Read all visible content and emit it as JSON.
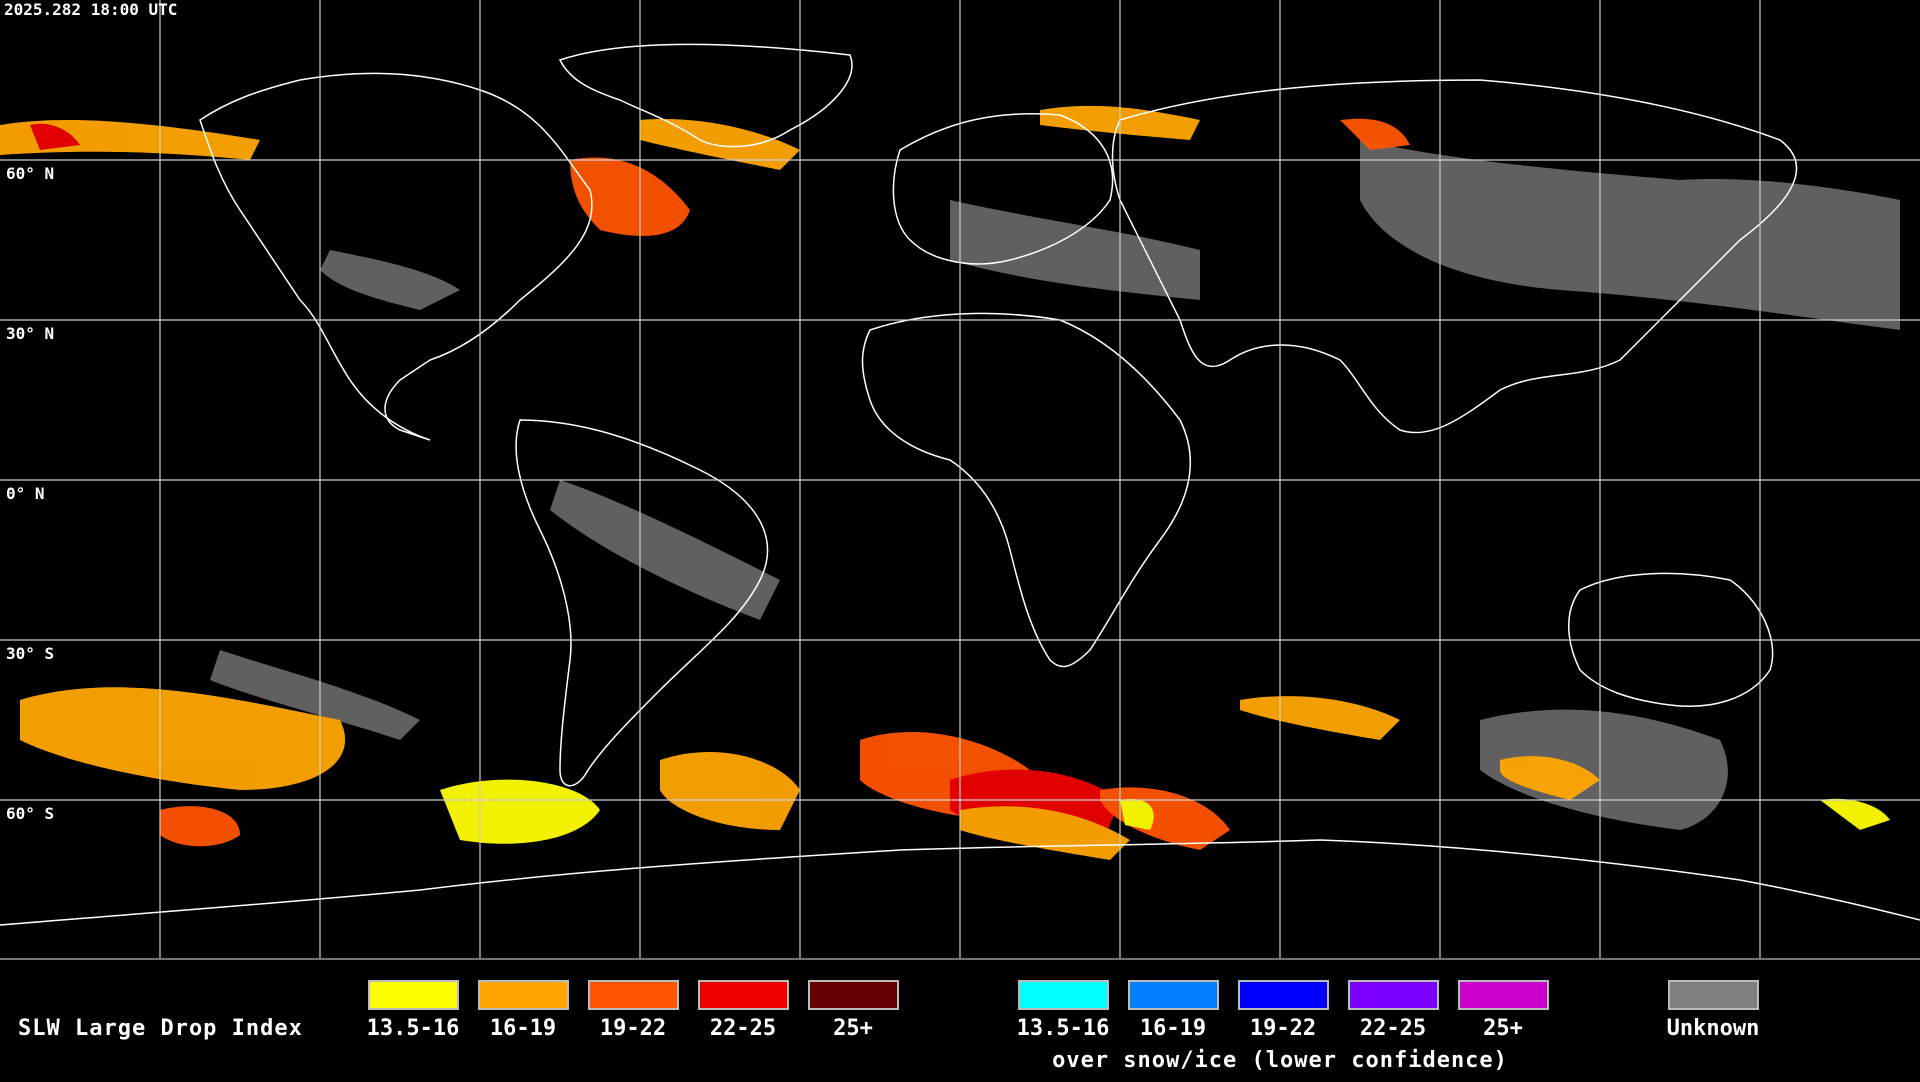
{
  "timestamp": "2025.282 18:00 UTC",
  "latitude_labels": [
    "60° N",
    "30° N",
    "0° N",
    "30° S",
    "60° S"
  ],
  "legend": {
    "title": "SLW Large Drop Index",
    "liquid_bins": [
      {
        "label": "13.5-16",
        "color": "#ffff00"
      },
      {
        "label": "16-19",
        "color": "#ffa500"
      },
      {
        "label": "19-22",
        "color": "#ff5500"
      },
      {
        "label": "22-25",
        "color": "#ee0000"
      },
      {
        "label": "25+",
        "color": "#660000"
      }
    ],
    "snow_bins": [
      {
        "label": "13.5-16",
        "color": "#00ffff"
      },
      {
        "label": "16-19",
        "color": "#0080ff"
      },
      {
        "label": "19-22",
        "color": "#0000ff"
      },
      {
        "label": "22-25",
        "color": "#7a00ff"
      },
      {
        "label": "25+",
        "color": "#cc00cc"
      }
    ],
    "snow_caption": "over snow/ice (lower confidence)",
    "unknown": {
      "label": "Unknown",
      "color": "#808080"
    }
  }
}
